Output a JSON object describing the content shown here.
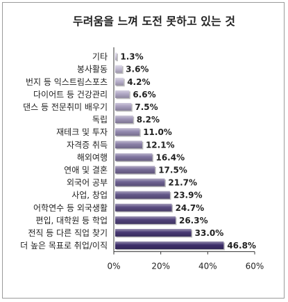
{
  "chart_data": {
    "type": "bar",
    "orientation": "horizontal",
    "title": "두려움을 느껴 도전 못하고 있는 것",
    "xlabel": "",
    "ylabel": "",
    "xlim": [
      0,
      60
    ],
    "x_ticks": [
      "0%",
      "20%",
      "40%",
      "60%"
    ],
    "grid": false,
    "legend": "none",
    "categories": [
      "기타",
      "봉사활동",
      "번지 등 익스트림스포츠",
      "다이어트 등 건강관리",
      "댄스 등 전문취미 배우기",
      "독립",
      "재테크 및 투자",
      "자격증 취득",
      "해외여행",
      "연애 및 결혼",
      "외국어 공부",
      "사업, 창업",
      "어학연수 등 외국생활",
      "편입, 대학원 등 학업",
      "전직 등 다른 직업 찾기",
      "더 높은 목표로 취업/이직"
    ],
    "values": [
      1.3,
      3.6,
      4.2,
      6.6,
      7.5,
      8.2,
      11.0,
      12.1,
      16.4,
      17.5,
      21.7,
      23.9,
      24.7,
      26.3,
      33.0,
      46.8
    ],
    "value_labels": [
      "1.3%",
      "3.6%",
      "4.2%",
      "6.6%",
      "7.5%",
      "8.2%",
      "11.0%",
      "12.1%",
      "16.4%",
      "17.5%",
      "21.7%",
      "23.9%",
      "24.7%",
      "26.3%",
      "33.0%",
      "46.8%"
    ],
    "colors": {
      "bar_light": "#cdc6dc",
      "bar_dark": "#3d2e6b",
      "axis": "#333333"
    }
  }
}
